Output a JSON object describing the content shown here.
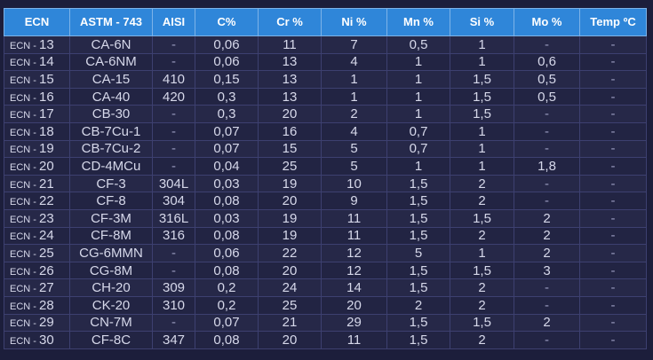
{
  "table": {
    "headers": [
      "ECN",
      "ASTM - 743",
      "AISI",
      "C%",
      "Cr %",
      "Ni %",
      "Mn %",
      "Si %",
      "Mo %",
      "Temp ºC"
    ],
    "ecn_prefix": "ECN - ",
    "rows": [
      [
        "13",
        "CA-6N",
        "-",
        "0,06",
        "11",
        "7",
        "0,5",
        "1",
        "-",
        "-"
      ],
      [
        "14",
        "CA-6NM",
        "-",
        "0,06",
        "13",
        "4",
        "1",
        "1",
        "0,6",
        "-"
      ],
      [
        "15",
        "CA-15",
        "410",
        "0,15",
        "13",
        "1",
        "1",
        "1,5",
        "0,5",
        "-"
      ],
      [
        "16",
        "CA-40",
        "420",
        "0,3",
        "13",
        "1",
        "1",
        "1,5",
        "0,5",
        "-"
      ],
      [
        "17",
        "CB-30",
        "-",
        "0,3",
        "20",
        "2",
        "1",
        "1,5",
        "-",
        "-"
      ],
      [
        "18",
        "CB-7Cu-1",
        "-",
        "0,07",
        "16",
        "4",
        "0,7",
        "1",
        "-",
        "-"
      ],
      [
        "19",
        "CB-7Cu-2",
        "-",
        "0,07",
        "15",
        "5",
        "0,7",
        "1",
        "-",
        "-"
      ],
      [
        "20",
        "CD-4MCu",
        "-",
        "0,04",
        "25",
        "5",
        "1",
        "1",
        "1,8",
        "-"
      ],
      [
        "21",
        "CF-3",
        "304L",
        "0,03",
        "19",
        "10",
        "1,5",
        "2",
        "-",
        "-"
      ],
      [
        "22",
        "CF-8",
        "304",
        "0,08",
        "20",
        "9",
        "1,5",
        "2",
        "-",
        "-"
      ],
      [
        "23",
        "CF-3M",
        "316L",
        "0,03",
        "19",
        "11",
        "1,5",
        "1,5",
        "2",
        "-"
      ],
      [
        "24",
        "CF-8M",
        "316",
        "0,08",
        "19",
        "11",
        "1,5",
        "2",
        "2",
        "-"
      ],
      [
        "25",
        "CG-6MMN",
        "-",
        "0,06",
        "22",
        "12",
        "5",
        "1",
        "2",
        "-"
      ],
      [
        "26",
        "CG-8M",
        "-",
        "0,08",
        "20",
        "12",
        "1,5",
        "1,5",
        "3",
        "-"
      ],
      [
        "27",
        "CH-20",
        "309",
        "0,2",
        "24",
        "14",
        "1,5",
        "2",
        "-",
        "-"
      ],
      [
        "28",
        "CK-20",
        "310",
        "0,2",
        "25",
        "20",
        "2",
        "2",
        "-",
        "-"
      ],
      [
        "29",
        "CN-7M",
        "-",
        "0,07",
        "21",
        "29",
        "1,5",
        "1,5",
        "2",
        "-"
      ],
      [
        "30",
        "CF-8C",
        "347",
        "0,08",
        "20",
        "11",
        "1,5",
        "2",
        "-",
        "-"
      ]
    ]
  }
}
